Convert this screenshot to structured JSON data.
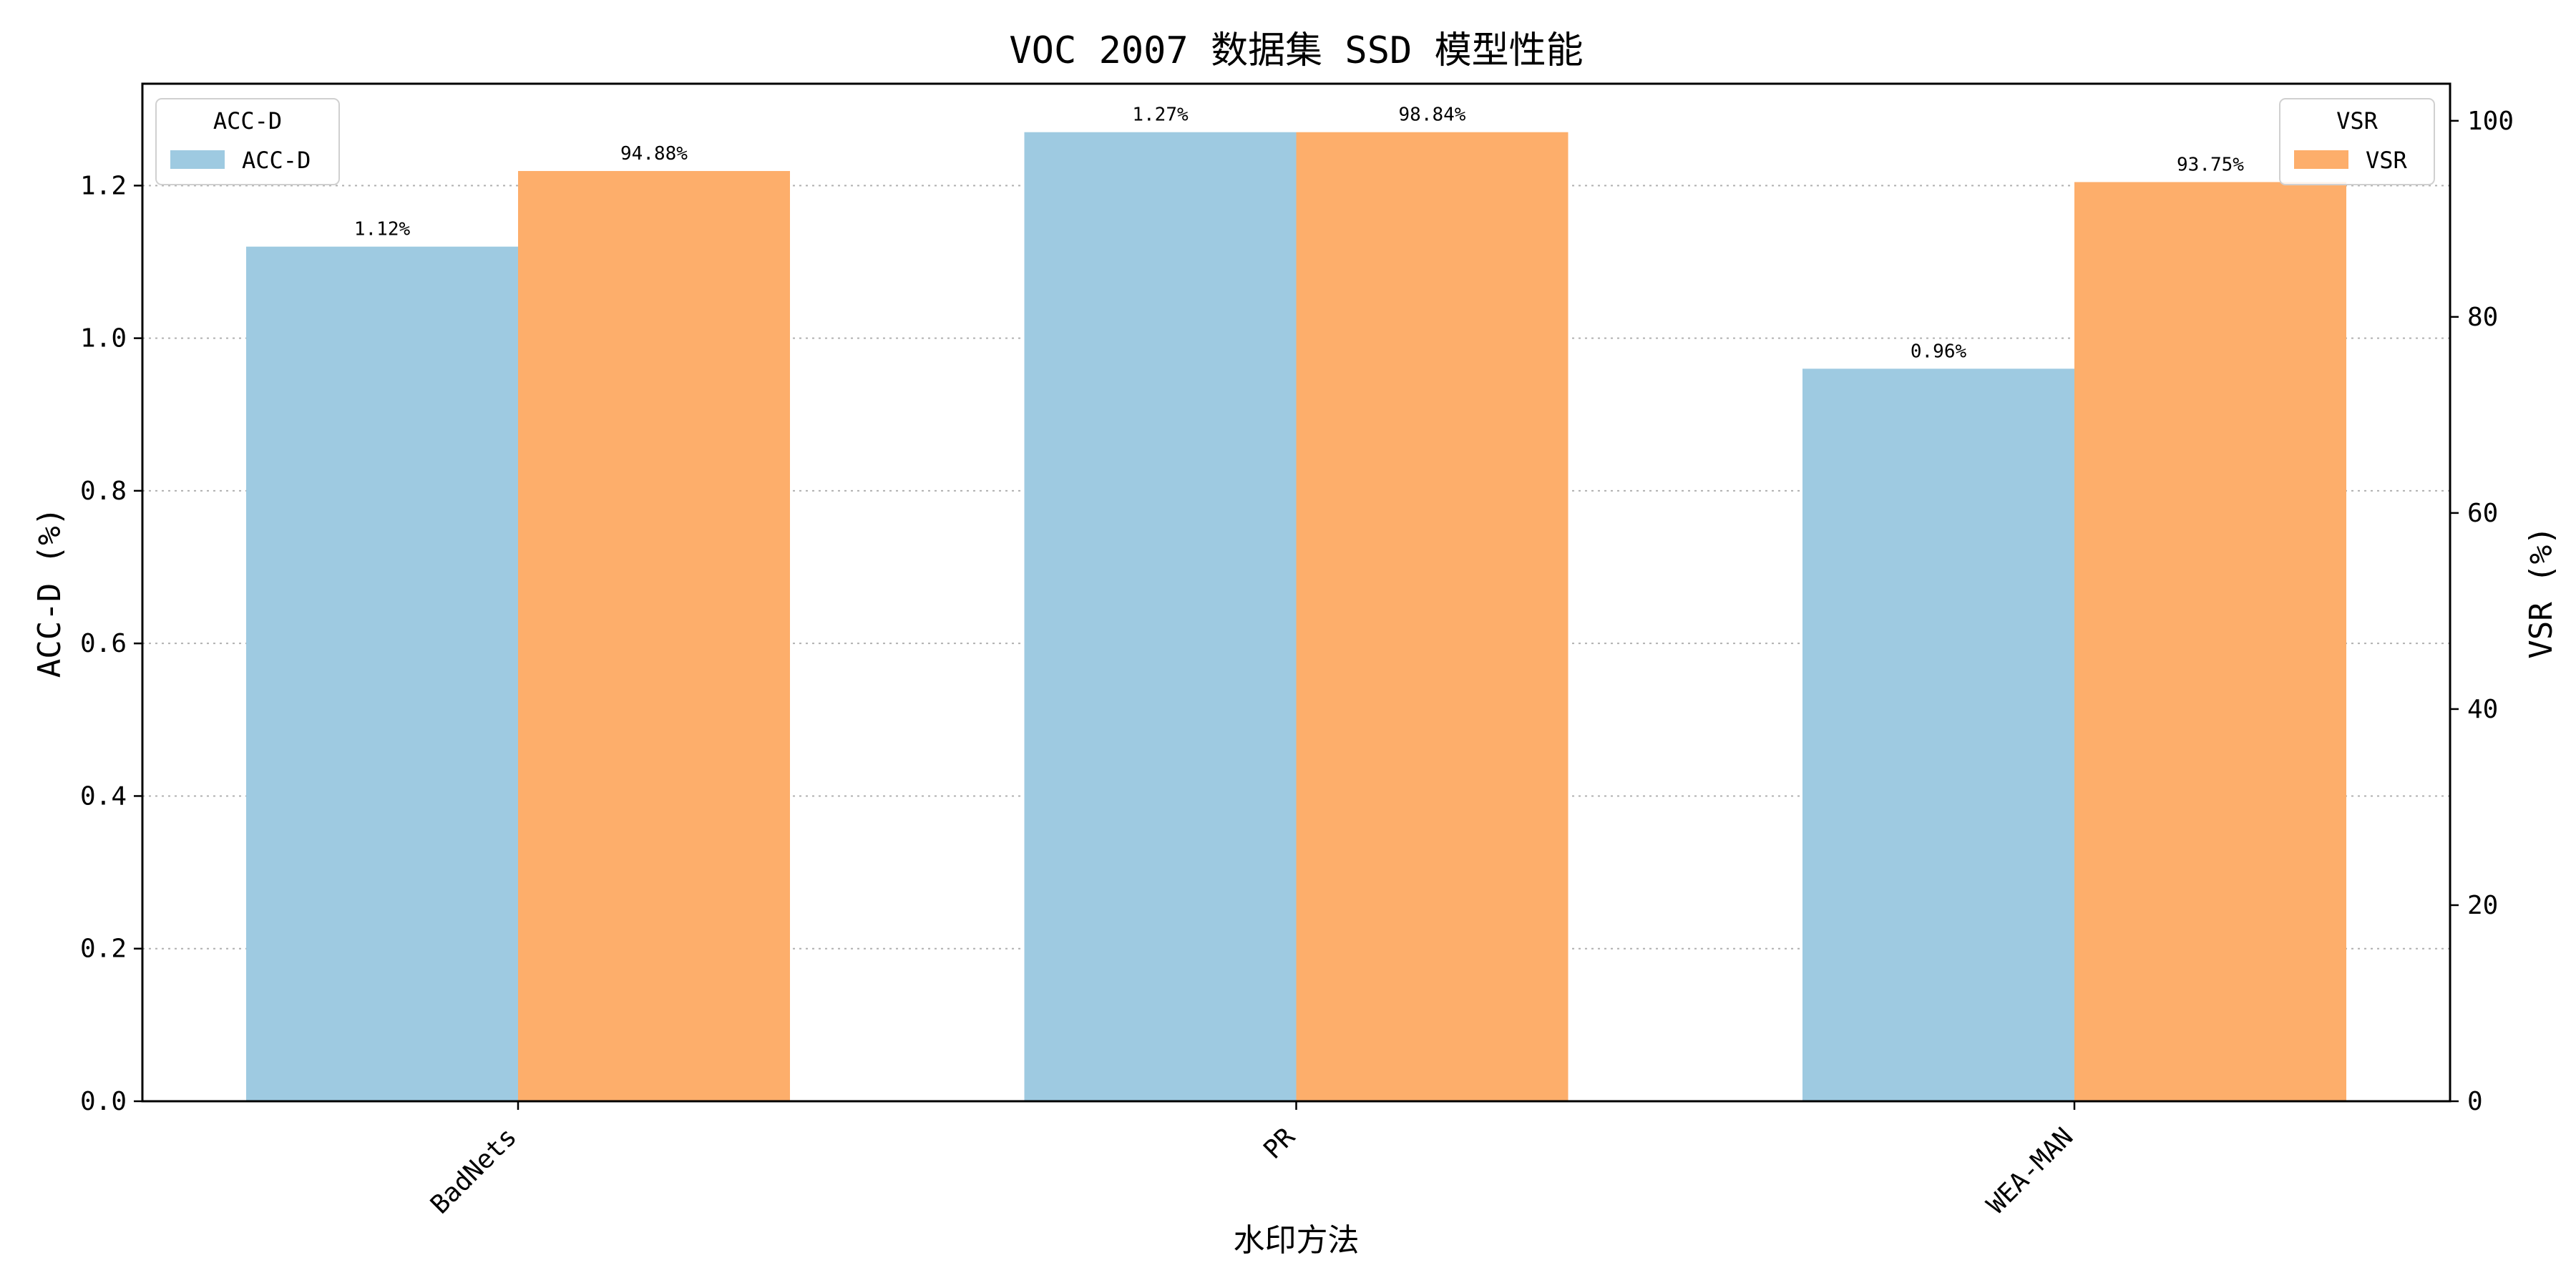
{
  "chart_data": {
    "type": "bar",
    "title": "VOC 2007 数据集 SSD 模型性能",
    "xlabel": "水印方法",
    "categories": [
      "BadNets",
      "PR",
      "WEA-MAN"
    ],
    "series": [
      {
        "name": "ACC-D",
        "axis": "left",
        "values": [
          1.12,
          1.27,
          0.96
        ],
        "labels": [
          "1.12%",
          "1.27%",
          "0.96%"
        ],
        "color": "#9ecae1"
      },
      {
        "name": "VSR",
        "axis": "right",
        "values": [
          94.88,
          98.84,
          93.75
        ],
        "labels": [
          "94.88%",
          "98.84%",
          "93.75%"
        ],
        "color": "#fdae6b"
      }
    ],
    "y_left": {
      "label": "ACC-D (%)",
      "range": [
        0,
        1.3335
      ],
      "ticks": [
        0.0,
        0.2,
        0.4,
        0.6,
        0.8,
        1.0,
        1.2
      ],
      "tick_labels": [
        "0.0",
        "0.2",
        "0.4",
        "0.6",
        "0.8",
        "1.0",
        "1.2"
      ]
    },
    "y_right": {
      "label": "VSR (%)",
      "range": [
        0,
        103.782
      ],
      "ticks": [
        0,
        20,
        40,
        60,
        80,
        100
      ],
      "tick_labels": [
        "0",
        "20",
        "40",
        "60",
        "80",
        "100"
      ]
    },
    "grid": "horizontal-dotted",
    "legends": [
      {
        "placement": "top-left",
        "title": "ACC-D",
        "entries": [
          "ACC-D"
        ]
      },
      {
        "placement": "top-right",
        "title": "VSR",
        "entries": [
          "VSR"
        ]
      }
    ]
  }
}
